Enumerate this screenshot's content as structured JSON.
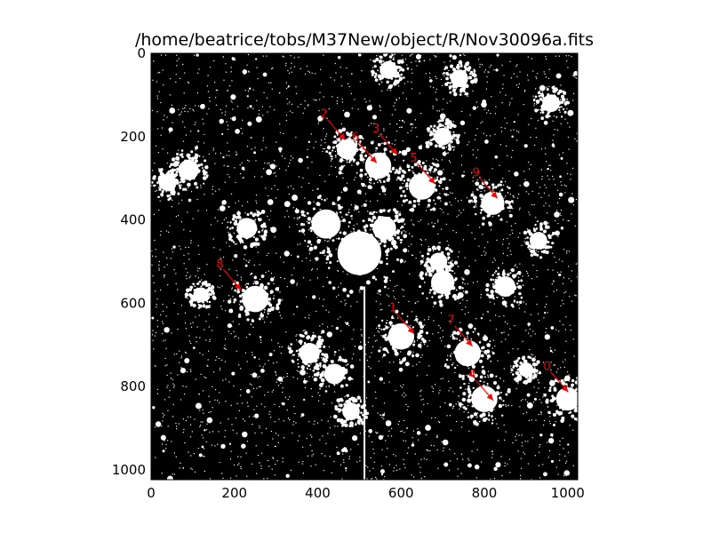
{
  "title": "/home/beatrice/tobs/M37New/object/R/Nov30096a.fits",
  "axes": {
    "x_ticks": [
      0,
      200,
      400,
      600,
      800,
      1000
    ],
    "y_ticks": [
      0,
      200,
      400,
      600,
      800,
      1000
    ],
    "x_range": [
      0,
      1024
    ],
    "y_range": [
      0,
      1024
    ],
    "y_inverted": true
  },
  "image": {
    "colormap": "binary",
    "background_color": "#000000",
    "source_color": "#ffffff",
    "sources": [
      {
        "x": 500,
        "y": 480,
        "r": 75
      },
      {
        "x": 420,
        "y": 410,
        "r": 50
      },
      {
        "x": 560,
        "y": 420,
        "r": 40
      },
      {
        "x": 545,
        "y": 270,
        "r": 45
      },
      {
        "x": 470,
        "y": 230,
        "r": 35
      },
      {
        "x": 650,
        "y": 320,
        "r": 45
      },
      {
        "x": 820,
        "y": 360,
        "r": 40
      },
      {
        "x": 250,
        "y": 590,
        "r": 45
      },
      {
        "x": 600,
        "y": 680,
        "r": 45
      },
      {
        "x": 760,
        "y": 720,
        "r": 45
      },
      {
        "x": 800,
        "y": 830,
        "r": 45
      },
      {
        "x": 1000,
        "y": 830,
        "r": 40
      },
      {
        "x": 230,
        "y": 420,
        "r": 35
      },
      {
        "x": 90,
        "y": 280,
        "r": 35
      },
      {
        "x": 40,
        "y": 310,
        "r": 30
      },
      {
        "x": 570,
        "y": 40,
        "r": 30
      },
      {
        "x": 740,
        "y": 60,
        "r": 30
      },
      {
        "x": 850,
        "y": 560,
        "r": 35
      },
      {
        "x": 700,
        "y": 550,
        "r": 40
      },
      {
        "x": 930,
        "y": 450,
        "r": 30
      },
      {
        "x": 380,
        "y": 720,
        "r": 35
      },
      {
        "x": 440,
        "y": 770,
        "r": 35
      },
      {
        "x": 690,
        "y": 500,
        "r": 30
      },
      {
        "x": 960,
        "y": 120,
        "r": 30
      },
      {
        "x": 120,
        "y": 580,
        "r": 25
      },
      {
        "x": 700,
        "y": 200,
        "r": 30
      },
      {
        "x": 900,
        "y": 760,
        "r": 25
      },
      {
        "x": 480,
        "y": 860,
        "r": 30
      }
    ]
  },
  "markers": [
    {
      "label": "1",
      "x": 580,
      "y": 620
    },
    {
      "label": "2",
      "x": 415,
      "y": 155
    },
    {
      "label": "3",
      "x": 540,
      "y": 190
    },
    {
      "label": "4",
      "x": 770,
      "y": 780
    },
    {
      "label": "5",
      "x": 630,
      "y": 260
    },
    {
      "label": "6",
      "x": 490,
      "y": 210
    },
    {
      "label": "7",
      "x": 720,
      "y": 650
    },
    {
      "label": "8",
      "x": 165,
      "y": 515
    },
    {
      "label": "9",
      "x": 780,
      "y": 295
    },
    {
      "label": "0",
      "x": 950,
      "y": 760
    }
  ],
  "marker_color": "#ff0000"
}
